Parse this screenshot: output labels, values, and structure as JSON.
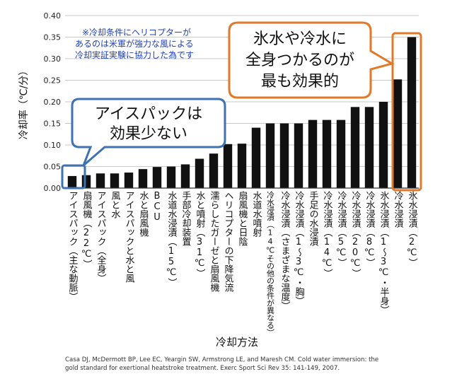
{
  "chart_data": {
    "type": "bar",
    "ylabel": "冷却率（℃/分）",
    "xlabel": "冷却方法",
    "ylim": [
      0,
      0.4
    ],
    "yticks": [
      "0.00",
      "0.05",
      "0.10",
      "0.15",
      "0.20",
      "0.25",
      "0.30",
      "0.35",
      "0.40"
    ],
    "categories": [
      "アイスパック（主な動脈）",
      "扇風機（22℃）",
      "アイスパック（全身）",
      "風と水",
      "アイスパックと水と風",
      "水と扇風機",
      "BCU",
      "水道水浸漬（15℃）",
      "手部冷却装置",
      "水と噴射（31℃）",
      "濡らしたガーゼと扇風機",
      "ヘリコプターの下降気流",
      "扇風機と日陰",
      "水道水噴射",
      "冷水浸漬（14℃その他の条件が異なる）",
      "冷水浸漬（さまざまな温度）",
      "冷水浸漬（1～3℃・胸）",
      "手足の水浸漬",
      "冷水浸漬（14℃）",
      "冷水浸漬（5℃）",
      "冷水浸漬（20℃）",
      "冷水浸漬（8℃）",
      "氷水浸漬（1～3℃・半身）",
      "冷水浸漬",
      "氷水浸漬（2℃）"
    ],
    "values": [
      0.028,
      0.03,
      0.034,
      0.034,
      0.036,
      0.044,
      0.049,
      0.05,
      0.055,
      0.068,
      0.08,
      0.102,
      0.103,
      0.14,
      0.15,
      0.15,
      0.15,
      0.158,
      0.158,
      0.158,
      0.188,
      0.188,
      0.2,
      0.252,
      0.35
    ],
    "grid": true
  },
  "note": {
    "lines": [
      "※冷却条件にヘリコプターが",
      "あるのは米軍が強力な風による",
      "冷却実証実験に協力した為です"
    ]
  },
  "callout_ice": {
    "lines": [
      "アイスパックは",
      "効果少ない"
    ]
  },
  "callout_cold": {
    "lines": [
      "氷水や冷水に",
      "全身つかるのが",
      "最も効果的"
    ]
  },
  "citation": {
    "line1": "Casa DJ, McDermott BP, Lee EC, Yeargin SW, Armstrong LE, and Maresh CM. Cold water immersion: the",
    "line2": "gold standard for exertional heatstroke treatment. Exerc Sport Sci Rev 35: 141-149, 2007."
  },
  "colors": {
    "bar": "#111111",
    "callout_ice_border": "#3f72b0",
    "callout_cold_border": "#e07a2a",
    "note": "#1f3fb8"
  }
}
